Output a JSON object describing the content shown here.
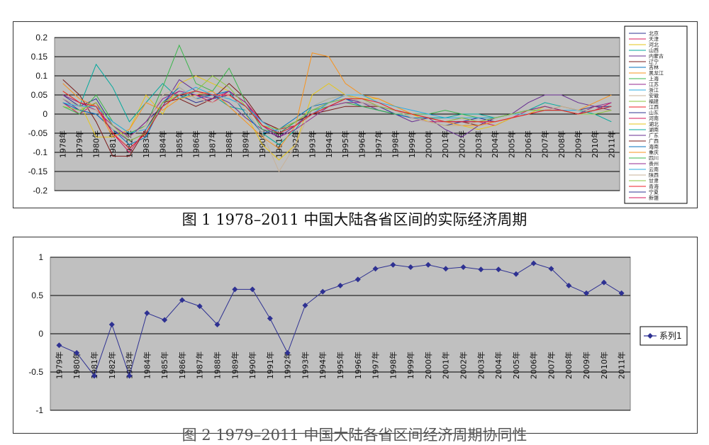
{
  "chart_data": [
    {
      "type": "line",
      "caption": "图 1 1978–2011 中国大陆各省区间的实际经济周期",
      "x": [
        "1978年",
        "1979年",
        "1980年",
        "1981年",
        "1982年",
        "1983年",
        "1984年",
        "1985年",
        "1986年",
        "1987年",
        "1988年",
        "1989年",
        "1990年",
        "1991年",
        "1992年",
        "1993年",
        "1994年",
        "1995年",
        "1996年",
        "1997年",
        "1998年",
        "1999年",
        "2000年",
        "2001年",
        "2002年",
        "2003年",
        "2004年",
        "2005年",
        "2006年",
        "2007年",
        "2008年",
        "2009年",
        "2010年",
        "2011年"
      ],
      "ylim": [
        -0.2,
        0.2
      ],
      "yticks": [
        "0.2",
        "0.15",
        "0.1",
        "0.05",
        "0",
        "-0.05",
        "-0.1",
        "-0.15",
        "-0.2"
      ],
      "grid": true,
      "legend_position": "right",
      "province_labels": [
        "北京",
        "天津",
        "河北",
        "山西",
        "内蒙古",
        "辽宁",
        "吉林",
        "黑龙江",
        "上海",
        "江苏",
        "浙江",
        "安徽",
        "福建",
        "江西",
        "山东",
        "河南",
        "湖北",
        "湖南",
        "广东",
        "广西",
        "海南",
        "重庆",
        "四川",
        "贵州",
        "云南",
        "陕西",
        "甘肃",
        "青海",
        "宁夏",
        "新疆"
      ],
      "series": [
        {
          "color": "#2e3192",
          "values": [
            0.05,
            0.02,
            0.04,
            -0.03,
            -0.06,
            -0.02,
            0.02,
            0.05,
            0.03,
            0.04,
            0.05,
            0.02,
            -0.03,
            -0.05,
            -0.02,
            0.0,
            0.02,
            0.04,
            0.03,
            0.02,
            0.0,
            -0.01,
            -0.02,
            -0.03,
            -0.02,
            -0.01,
            -0.02,
            -0.01,
            0.0,
            0.01,
            0.02,
            0.01,
            0.02,
            0.02
          ]
        },
        {
          "color": "#d4145a",
          "values": [
            0.03,
            0.0,
            0.03,
            -0.05,
            -0.1,
            -0.04,
            0.03,
            0.06,
            0.05,
            0.03,
            0.06,
            0.03,
            -0.02,
            -0.04,
            -0.03,
            0.0,
            0.03,
            0.05,
            0.04,
            0.02,
            0.01,
            -0.01,
            -0.02,
            -0.02,
            -0.01,
            -0.02,
            -0.03,
            -0.01,
            0.01,
            0.02,
            0.01,
            0.0,
            0.01,
            0.03
          ]
        },
        {
          "color": "#e6c619",
          "values": [
            0.06,
            0.03,
            -0.06,
            -0.06,
            -0.04,
            0.05,
            0.0,
            0.08,
            0.1,
            0.08,
            0.06,
            0.0,
            -0.08,
            -0.12,
            -0.08,
            0.05,
            0.08,
            0.05,
            0.04,
            0.04,
            0.02,
            0.0,
            -0.02,
            -0.03,
            -0.03,
            -0.04,
            -0.03,
            -0.01,
            0.0,
            0.02,
            0.01,
            0.0,
            0.02,
            0.01
          ]
        },
        {
          "color": "#00a99d",
          "values": [
            0.04,
            0.02,
            0.13,
            0.07,
            -0.02,
            0.03,
            0.08,
            0.04,
            0.06,
            0.05,
            0.02,
            0.01,
            -0.05,
            -0.08,
            -0.04,
            0.02,
            0.04,
            0.05,
            0.03,
            0.02,
            0.01,
            0.0,
            -0.01,
            -0.01,
            0.0,
            0.0,
            -0.01,
            0.0,
            0.01,
            0.03,
            0.02,
            0.01,
            0.0,
            -0.02
          ]
        },
        {
          "color": "#662d91",
          "values": [
            0.04,
            0.01,
            0.0,
            -0.04,
            -0.07,
            -0.05,
            0.02,
            0.09,
            0.06,
            0.05,
            0.03,
            -0.01,
            -0.04,
            -0.06,
            -0.03,
            0.01,
            0.03,
            0.04,
            0.03,
            0.01,
            0.0,
            -0.02,
            -0.01,
            -0.04,
            -0.06,
            -0.03,
            -0.01,
            0.0,
            0.03,
            0.05,
            0.05,
            0.03,
            0.02,
            0.01
          ]
        },
        {
          "color": "#7a1a1a",
          "values": [
            0.09,
            0.05,
            -0.02,
            -0.11,
            -0.11,
            -0.04,
            0.03,
            0.04,
            0.02,
            0.04,
            0.08,
            0.04,
            -0.02,
            -0.04,
            -0.02,
            0.0,
            0.01,
            0.02,
            0.02,
            0.02,
            0.01,
            0.0,
            -0.01,
            -0.02,
            -0.02,
            -0.03,
            -0.02,
            -0.01,
            0.0,
            0.01,
            0.01,
            0.0,
            0.01,
            0.02
          ]
        },
        {
          "color": "#0071bc",
          "values": [
            0.03,
            0.01,
            0.0,
            -0.04,
            -0.08,
            -0.06,
            0.03,
            0.07,
            0.04,
            0.05,
            0.06,
            0.0,
            -0.05,
            -0.04,
            -0.01,
            0.02,
            0.03,
            0.04,
            0.02,
            0.01,
            0.0,
            -0.01,
            -0.01,
            -0.02,
            -0.02,
            -0.02,
            -0.01,
            0.0,
            0.01,
            0.01,
            0.01,
            0.0,
            0.01,
            0.02
          ]
        },
        {
          "color": "#f7931e",
          "values": [
            0.08,
            0.04,
            0.02,
            -0.06,
            -0.04,
            0.03,
            0.01,
            0.04,
            0.05,
            0.06,
            0.02,
            -0.02,
            -0.06,
            -0.09,
            -0.03,
            0.16,
            0.15,
            0.08,
            0.05,
            0.04,
            0.02,
            0.0,
            -0.01,
            -0.02,
            -0.03,
            -0.03,
            -0.02,
            -0.01,
            0.0,
            0.01,
            0.02,
            0.01,
            0.03,
            0.05
          ]
        },
        {
          "color": "#39b54a",
          "values": [
            0.02,
            0.0,
            0.05,
            -0.02,
            -0.05,
            -0.03,
            0.07,
            0.18,
            0.08,
            0.06,
            0.12,
            0.03,
            -0.04,
            -0.05,
            -0.02,
            0.01,
            0.02,
            0.03,
            0.02,
            0.01,
            0.0,
            0.0,
            0.0,
            0.01,
            0.0,
            -0.01,
            -0.01,
            0.0,
            0.01,
            0.02,
            0.01,
            0.0,
            0.01,
            0.02
          ]
        },
        {
          "color": "#93278f",
          "values": [
            0.05,
            0.03,
            0.01,
            -0.03,
            -0.06,
            -0.02,
            0.04,
            0.06,
            0.05,
            0.04,
            0.06,
            0.03,
            -0.03,
            -0.06,
            -0.04,
            -0.01,
            0.02,
            0.03,
            0.03,
            0.02,
            0.01,
            0.0,
            -0.01,
            -0.02,
            -0.02,
            -0.02,
            -0.01,
            0.0,
            0.01,
            0.02,
            0.01,
            0.0,
            0.02,
            0.03
          ]
        },
        {
          "color": "#29abe2",
          "values": [
            0.03,
            0.02,
            0.02,
            -0.02,
            -0.05,
            -0.04,
            0.02,
            0.05,
            0.07,
            0.05,
            0.04,
            0.02,
            -0.02,
            -0.05,
            -0.03,
            0.0,
            0.03,
            0.05,
            0.05,
            0.03,
            0.02,
            0.01,
            0.0,
            -0.01,
            -0.01,
            -0.01,
            -0.01,
            0.0,
            0.0,
            0.01,
            0.01,
            0.01,
            0.01,
            0.02
          ]
        },
        {
          "color": "#c7b299",
          "values": [
            0.04,
            0.02,
            0.01,
            -0.04,
            -0.06,
            -0.03,
            0.05,
            0.07,
            0.04,
            0.03,
            0.05,
            0.01,
            -0.05,
            -0.15,
            -0.08,
            0.02,
            0.04,
            0.05,
            0.03,
            0.02,
            0.01,
            -0.01,
            -0.02,
            -0.03,
            -0.03,
            -0.02,
            -0.02,
            -0.01,
            0.0,
            0.01,
            0.02,
            0.01,
            0.01,
            0.01
          ]
        },
        {
          "color": "#8cc63f",
          "values": [
            0.02,
            0.01,
            0.03,
            -0.03,
            -0.07,
            -0.05,
            0.03,
            0.05,
            0.06,
            0.1,
            0.07,
            0.02,
            -0.03,
            -0.04,
            -0.02,
            0.01,
            0.03,
            0.04,
            0.04,
            0.02,
            0.01,
            0.0,
            -0.01,
            -0.02,
            -0.01,
            -0.02,
            -0.01,
            0.0,
            0.01,
            0.01,
            0.01,
            0.0,
            0.0,
            0.01
          ]
        },
        {
          "color": "#ed1c24",
          "values": [
            0.06,
            0.03,
            0.02,
            -0.05,
            -0.09,
            -0.05,
            0.02,
            0.05,
            0.06,
            0.05,
            0.05,
            0.02,
            -0.03,
            -0.05,
            -0.03,
            0.0,
            0.02,
            0.04,
            0.04,
            0.03,
            0.01,
            0.0,
            -0.01,
            -0.02,
            -0.02,
            -0.02,
            -0.02,
            -0.01,
            0.0,
            0.01,
            0.01,
            0.0,
            0.01,
            0.02
          ]
        }
      ]
    },
    {
      "type": "line",
      "x": [
        "1979年",
        "1980年",
        "1981年",
        "1982年",
        "1983年",
        "1984年",
        "1985年",
        "1986年",
        "1987年",
        "1988年",
        "1989年",
        "1990年",
        "1991年",
        "1992年",
        "1993年",
        "1994年",
        "1995年",
        "1996年",
        "1997年",
        "1998年",
        "1999年",
        "2000年",
        "2001年",
        "2002年",
        "2003年",
        "2004年",
        "2005年",
        "2006年",
        "2007年",
        "2008年",
        "2009年",
        "2010年",
        "2011年"
      ],
      "ylim": [
        -1,
        1
      ],
      "yticks": [
        "1",
        "0.5",
        "0",
        "-0.5",
        "-1"
      ],
      "grid": true,
      "legend_position": "right",
      "series": [
        {
          "name": "系列1",
          "color": "#2e3192",
          "values": [
            -0.15,
            -0.25,
            -0.55,
            0.12,
            -0.55,
            0.27,
            0.18,
            0.44,
            0.36,
            0.12,
            0.58,
            0.58,
            0.2,
            -0.25,
            0.37,
            0.55,
            0.63,
            0.71,
            0.85,
            0.9,
            0.87,
            0.9,
            0.85,
            0.87,
            0.84,
            0.84,
            0.78,
            0.92,
            0.85,
            0.63,
            0.53,
            0.67,
            0.53
          ]
        }
      ]
    }
  ],
  "captions": {
    "figure1": "图 1 1978–2011 中国大陆各省区间的实际经济周期",
    "figure2": "图 2 1979–2011 中国大陆各省区间经济周期协同性"
  }
}
